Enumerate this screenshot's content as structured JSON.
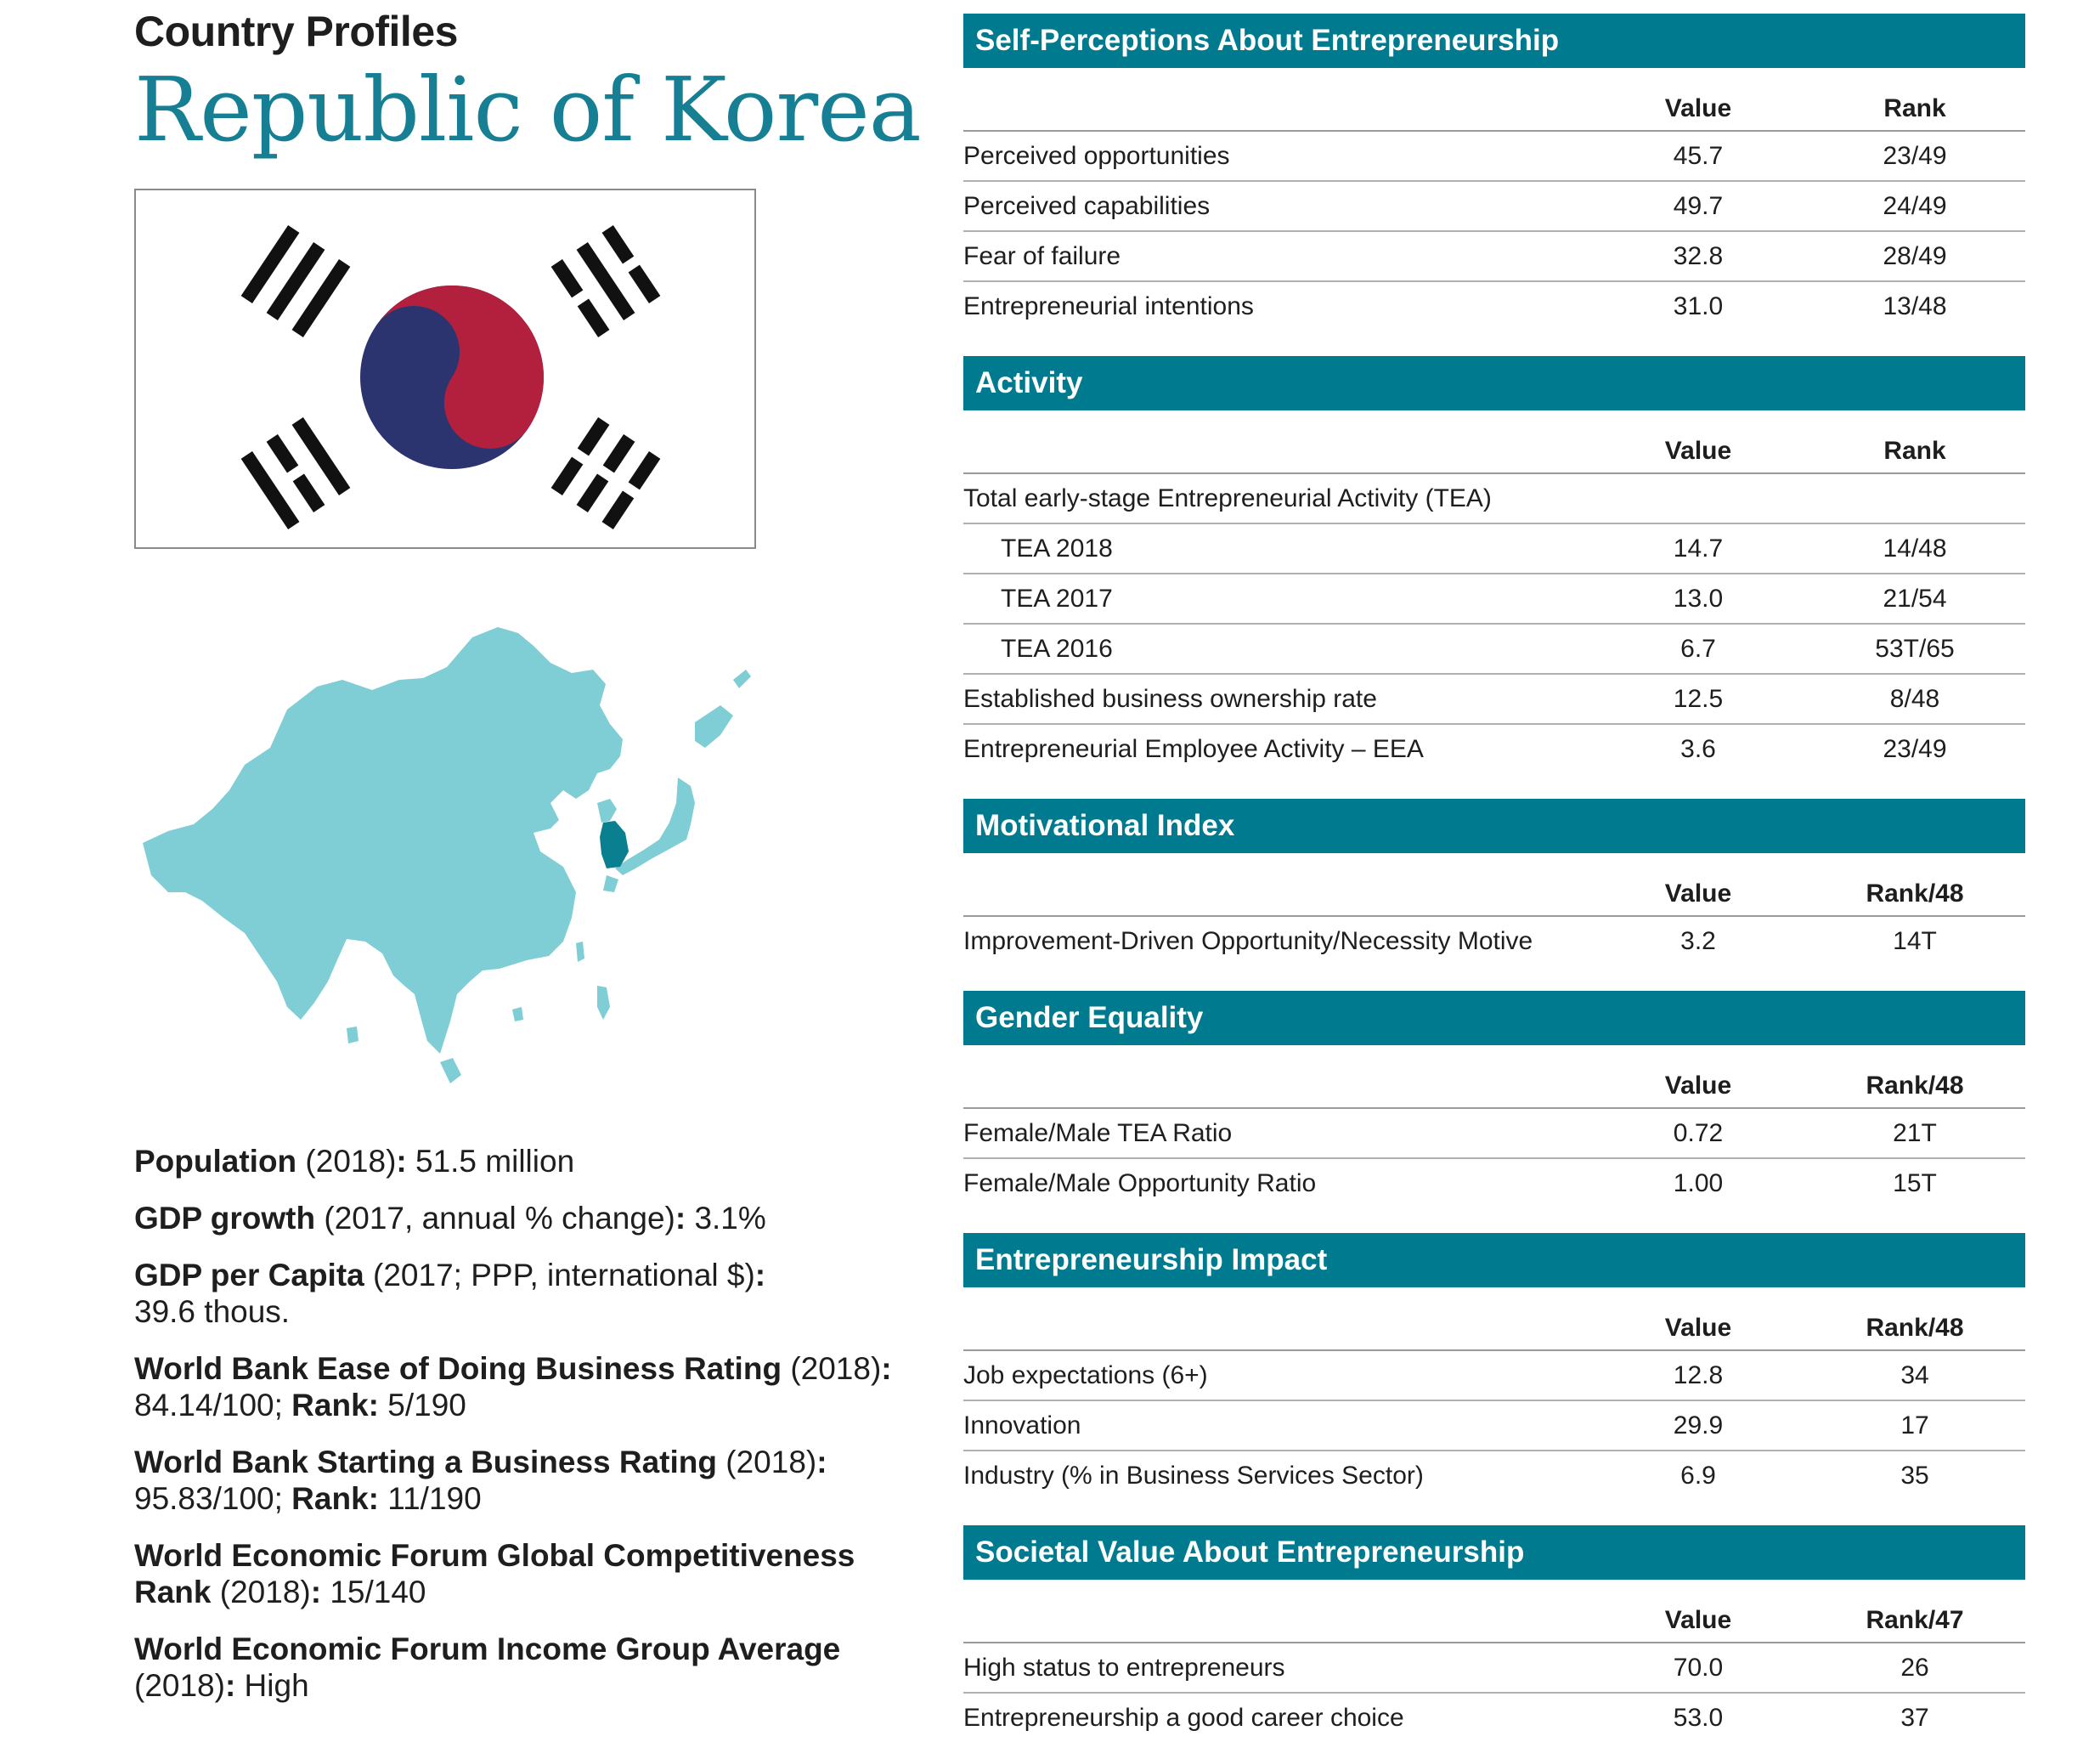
{
  "header": {
    "kicker": "Country Profiles",
    "country": "Republic of Korea"
  },
  "colors": {
    "accent": "#007a8e",
    "title": "#167f94",
    "map_region": "#7fcdd5",
    "map_highlight": "#0a7f8f",
    "flag_red": "#b3203d",
    "flag_blue": "#2c3470"
  },
  "facts": [
    {
      "label": "Population",
      "qualifier": " (2018)",
      "sep": ":",
      "value": " 51.5 million"
    },
    {
      "label": "GDP growth",
      "qualifier": " (2017, annual % change)",
      "sep": ":",
      "value": " 3.1%"
    },
    {
      "label": "GDP per Capita",
      "qualifier": " (2017; PPP, international $)",
      "sep": ":",
      "value": " 39.6 thous."
    },
    {
      "label": "World Bank Ease of  Doing Business Rating",
      "qualifier": " (2018)",
      "sep": ":",
      "value": " 84.14/100; ",
      "label2": "Rank:",
      "value2": " 5/190"
    },
    {
      "label": "World Bank Starting a Business Rating",
      "qualifier": " (2018)",
      "sep": ":",
      "value": " 95.83/100; ",
      "label2": "Rank:",
      "value2": " 11/190"
    },
    {
      "label": "World Economic Forum Global Competitiveness Rank",
      "qualifier": " (2018)",
      "sep": ":",
      "value": " 15/140"
    },
    {
      "label": "World Economic Forum Income Group Average",
      "qualifier": " (2018)",
      "sep": ":",
      "value": " High"
    }
  ],
  "sections": [
    {
      "title": "Self-Perceptions About Entrepreneurship",
      "col_value": "Value",
      "col_rank": "Rank",
      "rows": [
        {
          "label": "Perceived opportunities",
          "value": "45.7",
          "rank": "23/49"
        },
        {
          "label": "Perceived capabilities",
          "value": "49.7",
          "rank": "24/49"
        },
        {
          "label": "Fear of failure",
          "value": "32.8",
          "rank": "28/49"
        },
        {
          "label": "Entrepreneurial intentions",
          "value": "31.0",
          "rank": "13/48"
        }
      ]
    },
    {
      "title": "Activity",
      "col_value": "Value",
      "col_rank": "Rank",
      "rows": [
        {
          "label": "Total early-stage Entrepreneurial Activity (TEA)",
          "value": "",
          "rank": ""
        },
        {
          "label": "TEA 2018",
          "value": "14.7",
          "rank": "14/48",
          "indent": true
        },
        {
          "label": "TEA 2017",
          "value": "13.0",
          "rank": "21/54",
          "indent": true
        },
        {
          "label": "TEA 2016",
          "value": "6.7",
          "rank": "53T/65",
          "indent": true
        },
        {
          "label": "Established business ownership rate",
          "value": "12.5",
          "rank": "8/48"
        },
        {
          "label": "Entrepreneurial Employee Activity – EEA",
          "value": "3.6",
          "rank": "23/49"
        }
      ]
    },
    {
      "title": "Motivational Index",
      "col_value": "Value",
      "col_rank": "Rank/48",
      "rows": [
        {
          "label": "Improvement-Driven Opportunity/Necessity Motive",
          "value": "3.2",
          "rank": "14T"
        }
      ]
    },
    {
      "title": "Gender Equality",
      "col_value": "Value",
      "col_rank": "Rank/48",
      "rows": [
        {
          "label": "Female/Male TEA Ratio",
          "value": "0.72",
          "rank": "21T"
        },
        {
          "label": "Female/Male Opportunity Ratio",
          "value": "1.00",
          "rank": "15T"
        }
      ]
    },
    {
      "title": "Entrepreneurship Impact",
      "col_value": "Value",
      "col_rank": "Rank/48",
      "rows": [
        {
          "label": "Job expectations (6+)",
          "value": "12.8",
          "rank": "34"
        },
        {
          "label": "Innovation",
          "value": "29.9",
          "rank": "17"
        },
        {
          "label": "Industry (% in Business Services Sector)",
          "value": "6.9",
          "rank": "35"
        }
      ]
    },
    {
      "title": "Societal Value About Entrepreneurship",
      "col_value": "Value",
      "col_rank": "Rank/47",
      "rows": [
        {
          "label": "High status to entrepreneurs",
          "value": "70.0",
          "rank": "26"
        },
        {
          "label": "Entrepreneurship a good career choice",
          "value": "53.0",
          "rank": "37"
        }
      ]
    }
  ]
}
